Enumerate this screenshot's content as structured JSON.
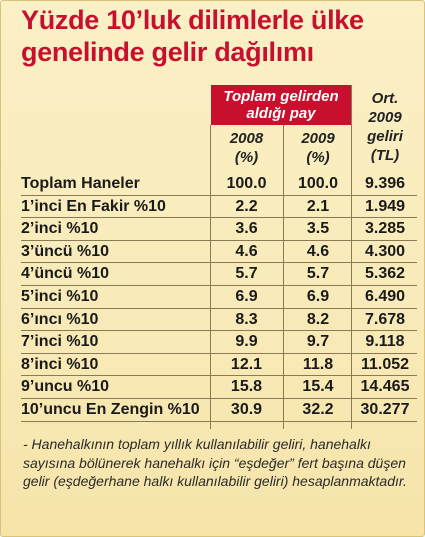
{
  "title_line1": "Yüzde 10’luk dilimlerle ülke",
  "title_line2": "genelinde gelir dağılımı",
  "header": {
    "share_label": "Toplam gelirden aldığı pay",
    "year1": "2008",
    "year1_unit": "(%)",
    "year2": "2009",
    "year2_unit": "(%)",
    "ort_line1": "Ort.",
    "ort_line2": "2009",
    "ort_line3": "geliri",
    "ort_line4": "(TL)"
  },
  "rows": [
    {
      "label": "Toplam Haneler",
      "v2008": "100.0",
      "v2009": "100.0",
      "income": "9.396"
    },
    {
      "label": "1’inci En Fakir %10",
      "v2008": "2.2",
      "v2009": "2.1",
      "income": "1.949"
    },
    {
      "label": "2’inci %10",
      "v2008": "3.6",
      "v2009": "3.5",
      "income": "3.285"
    },
    {
      "label": "3’üncü %10",
      "v2008": "4.6",
      "v2009": "4.6",
      "income": "4.300"
    },
    {
      "label": "4’üncü %10",
      "v2008": "5.7",
      "v2009": "5.7",
      "income": "5.362"
    },
    {
      "label": "5’inci %10",
      "v2008": "6.9",
      "v2009": "6.9",
      "income": "6.490"
    },
    {
      "label": "6’ıncı %10",
      "v2008": "8.3",
      "v2009": "8.2",
      "income": "7.678"
    },
    {
      "label": "7’inci %10",
      "v2008": "9.9",
      "v2009": "9.7",
      "income": "9.118"
    },
    {
      "label": "8’inci %10",
      "v2008": "12.1",
      "v2009": "11.8",
      "income": "11.052"
    },
    {
      "label": "9’uncu %10",
      "v2008": "15.8",
      "v2009": "15.4",
      "income": "14.465"
    },
    {
      "label": "10’uncu En Zengin %10",
      "v2008": "30.9",
      "v2009": "32.2",
      "income": "30.277"
    }
  ],
  "footnote": "- Hanehalkının toplam yıllık kullanılabilir geliri, hanehalkı sayısına bölünerek hanehalkı için “eşdeğer” fert başına düşen gelir (eşdeğerhane halkı kullanılabilir geliri) hesaplanmaktadır."
}
